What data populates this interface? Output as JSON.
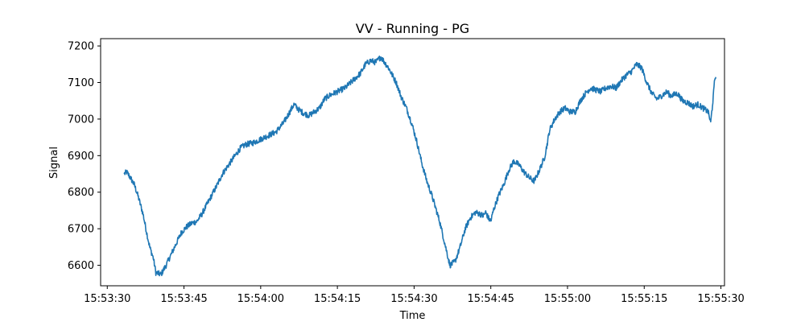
{
  "chart_data": {
    "type": "line",
    "title": "VV - Running - PG",
    "xlabel": "Time",
    "ylabel": "Signal",
    "x_tick_labels": [
      "15:53:30",
      "15:53:45",
      "15:54:00",
      "15:54:15",
      "15:54:30",
      "15:54:45",
      "15:55:00",
      "15:55:15",
      "15:55:30"
    ],
    "x_tick_seconds": [
      0,
      15,
      30,
      45,
      60,
      75,
      90,
      105,
      120
    ],
    "xlim_seconds": [
      -1.3,
      120.7
    ],
    "y_ticks": [
      6600,
      6700,
      6800,
      6900,
      7000,
      7100,
      7200
    ],
    "ylim": [
      6544,
      7220
    ],
    "grid": false,
    "color": "#1f77b4",
    "series": [
      {
        "x_seconds": [
          3.3,
          3.8,
          4.5,
          5.3,
          6.0,
          7.0,
          7.7,
          8.3,
          9.0,
          9.5,
          10.5,
          11.5,
          12.5,
          13.5,
          14.5,
          15.5,
          16.5,
          17.5,
          18.5,
          20,
          21.5,
          22.5,
          24,
          25,
          26,
          27,
          28.5,
          30,
          31.5,
          33,
          34.5,
          35.5,
          36.5,
          37.5,
          38.5,
          39.5,
          40.5,
          41.5,
          42.5,
          43.5,
          45,
          46.5,
          48,
          49.5,
          50.5,
          51.5,
          52.5,
          53.5,
          55,
          56.5,
          57.5,
          58.5,
          59.5,
          60.5,
          61.5,
          62.5,
          63.5,
          65,
          66,
          67,
          68,
          69,
          70,
          71,
          72,
          73,
          73.5,
          74,
          74.5,
          75,
          75.5,
          76.5,
          77.5,
          78.5,
          79.5,
          80.5,
          81.5,
          82.5,
          83.5,
          84.5,
          85.5,
          86,
          86.5,
          87.5,
          88.5,
          89.5,
          90.5,
          91.5,
          92.5,
          93.5,
          94.5,
          95.5,
          96.5,
          97.5,
          98.5,
          99.5,
          100.5,
          101.5,
          102.5,
          103.5,
          104.5,
          105.5,
          106.5,
          107.5,
          108.5,
          109.5,
          110,
          110.5,
          111.5,
          112.5,
          113.5,
          114.5,
          115.5,
          116.5,
          117.5,
          118,
          118.5,
          118.8,
          119
        ],
        "values": [
          6850,
          6855,
          6840,
          6820,
          6790,
          6740,
          6690,
          6650,
          6620,
          6580,
          6575,
          6600,
          6630,
          6660,
          6690,
          6705,
          6715,
          6720,
          6740,
          6780,
          6820,
          6850,
          6880,
          6900,
          6920,
          6930,
          6935,
          6945,
          6955,
          6965,
          6990,
          7015,
          7040,
          7025,
          7015,
          7010,
          7020,
          7030,
          7055,
          7065,
          7075,
          7085,
          7105,
          7125,
          7150,
          7160,
          7155,
          7170,
          7140,
          7100,
          7060,
          7030,
          6990,
          6940,
          6880,
          6830,
          6790,
          6720,
          6660,
          6600,
          6610,
          6650,
          6700,
          6730,
          6745,
          6740,
          6735,
          6745,
          6730,
          6720,
          6750,
          6790,
          6820,
          6860,
          6885,
          6875,
          6855,
          6840,
          6830,
          6860,
          6895,
          6930,
          6970,
          7000,
          7020,
          7030,
          7020,
          7020,
          7050,
          7070,
          7085,
          7080,
          7075,
          7085,
          7090,
          7085,
          7105,
          7120,
          7130,
          7150,
          7140,
          7100,
          7070,
          7055,
          7065,
          7075,
          7065,
          7065,
          7070,
          7050,
          7045,
          7035,
          7040,
          7030,
          7020,
          6990,
          7060,
          7110,
          7115
        ]
      }
    ]
  }
}
